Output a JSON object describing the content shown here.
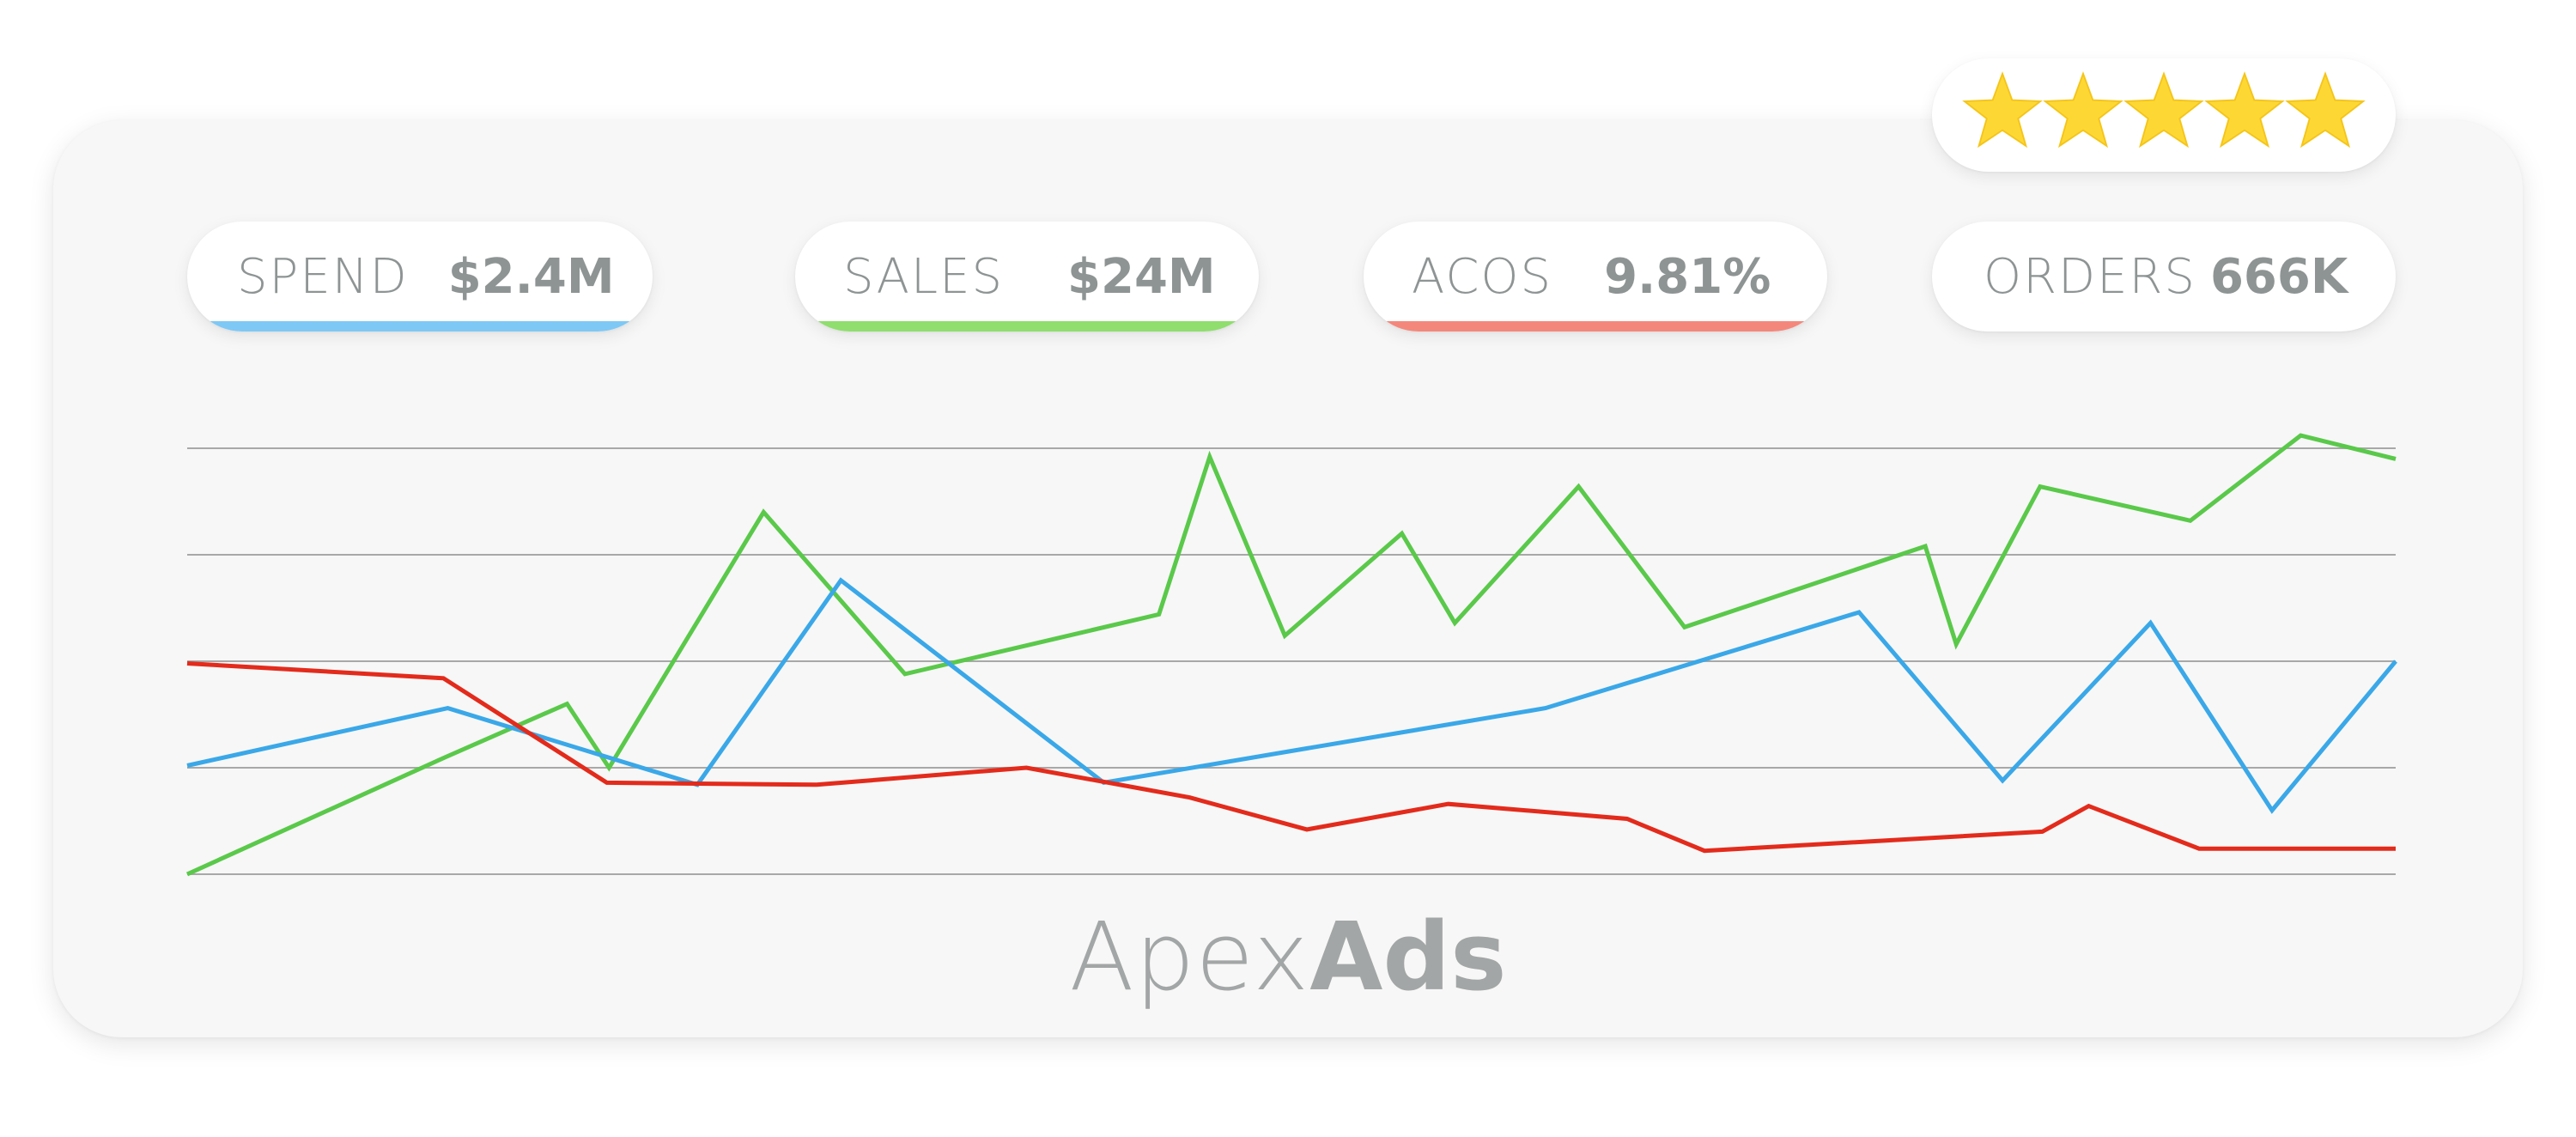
{
  "metrics": [
    {
      "label": "SPEND",
      "value": "$2.4M",
      "accent": "#7ec8f5"
    },
    {
      "label": "SALES",
      "value": "$24M",
      "accent": "#8fde6e"
    },
    {
      "label": "ACOS",
      "value": "9.81%",
      "accent": "#f4877b"
    },
    {
      "label": "ORDERS",
      "value": "666K",
      "accent": null
    }
  ],
  "rating": {
    "stars": 5,
    "max": 5,
    "color": "#fdd835"
  },
  "brand": {
    "light": "Apex",
    "bold": "Ads"
  },
  "chart_data": {
    "type": "line",
    "title": "",
    "xlabel": "",
    "ylabel": "",
    "grid": true,
    "gridline_count": 5,
    "legend": "none",
    "ylim": [
      0,
      100
    ],
    "series": [
      {
        "color": "#5ac94a",
        "points": [
          [
            0,
            0
          ],
          [
            11.7,
            27.5
          ],
          [
            17.2,
            40
          ],
          [
            19.1,
            25
          ],
          [
            26.1,
            85
          ],
          [
            32.5,
            47
          ],
          [
            44,
            61
          ],
          [
            46.3,
            98
          ],
          [
            49.7,
            56
          ],
          [
            55,
            80
          ],
          [
            57.4,
            59
          ],
          [
            63,
            91
          ],
          [
            67.8,
            58
          ],
          [
            78.7,
            77
          ],
          [
            80.1,
            54
          ],
          [
            83.9,
            91
          ],
          [
            90.7,
            83
          ],
          [
            95.7,
            103
          ],
          [
            100,
            97.5
          ]
        ]
      },
      {
        "color": "#3aa8e8",
        "points": [
          [
            0,
            25.5
          ],
          [
            11.8,
            39
          ],
          [
            23.1,
            21
          ],
          [
            29.6,
            69
          ],
          [
            41.5,
            21.5
          ],
          [
            61.5,
            39
          ],
          [
            75.7,
            61.5
          ],
          [
            82.2,
            22
          ],
          [
            88.9,
            59
          ],
          [
            94.4,
            15
          ],
          [
            100,
            50
          ]
        ]
      },
      {
        "color": "#e32b1c",
        "points": [
          [
            0,
            49.5
          ],
          [
            11.6,
            46
          ],
          [
            19,
            21.5
          ],
          [
            28.5,
            21
          ],
          [
            38,
            25
          ],
          [
            45.4,
            18
          ],
          [
            50.7,
            10.5
          ],
          [
            57.1,
            16.5
          ],
          [
            65.2,
            13
          ],
          [
            68.7,
            5.5
          ],
          [
            84,
            10
          ],
          [
            86.1,
            16
          ],
          [
            91.1,
            6
          ],
          [
            100,
            6
          ]
        ]
      }
    ]
  }
}
